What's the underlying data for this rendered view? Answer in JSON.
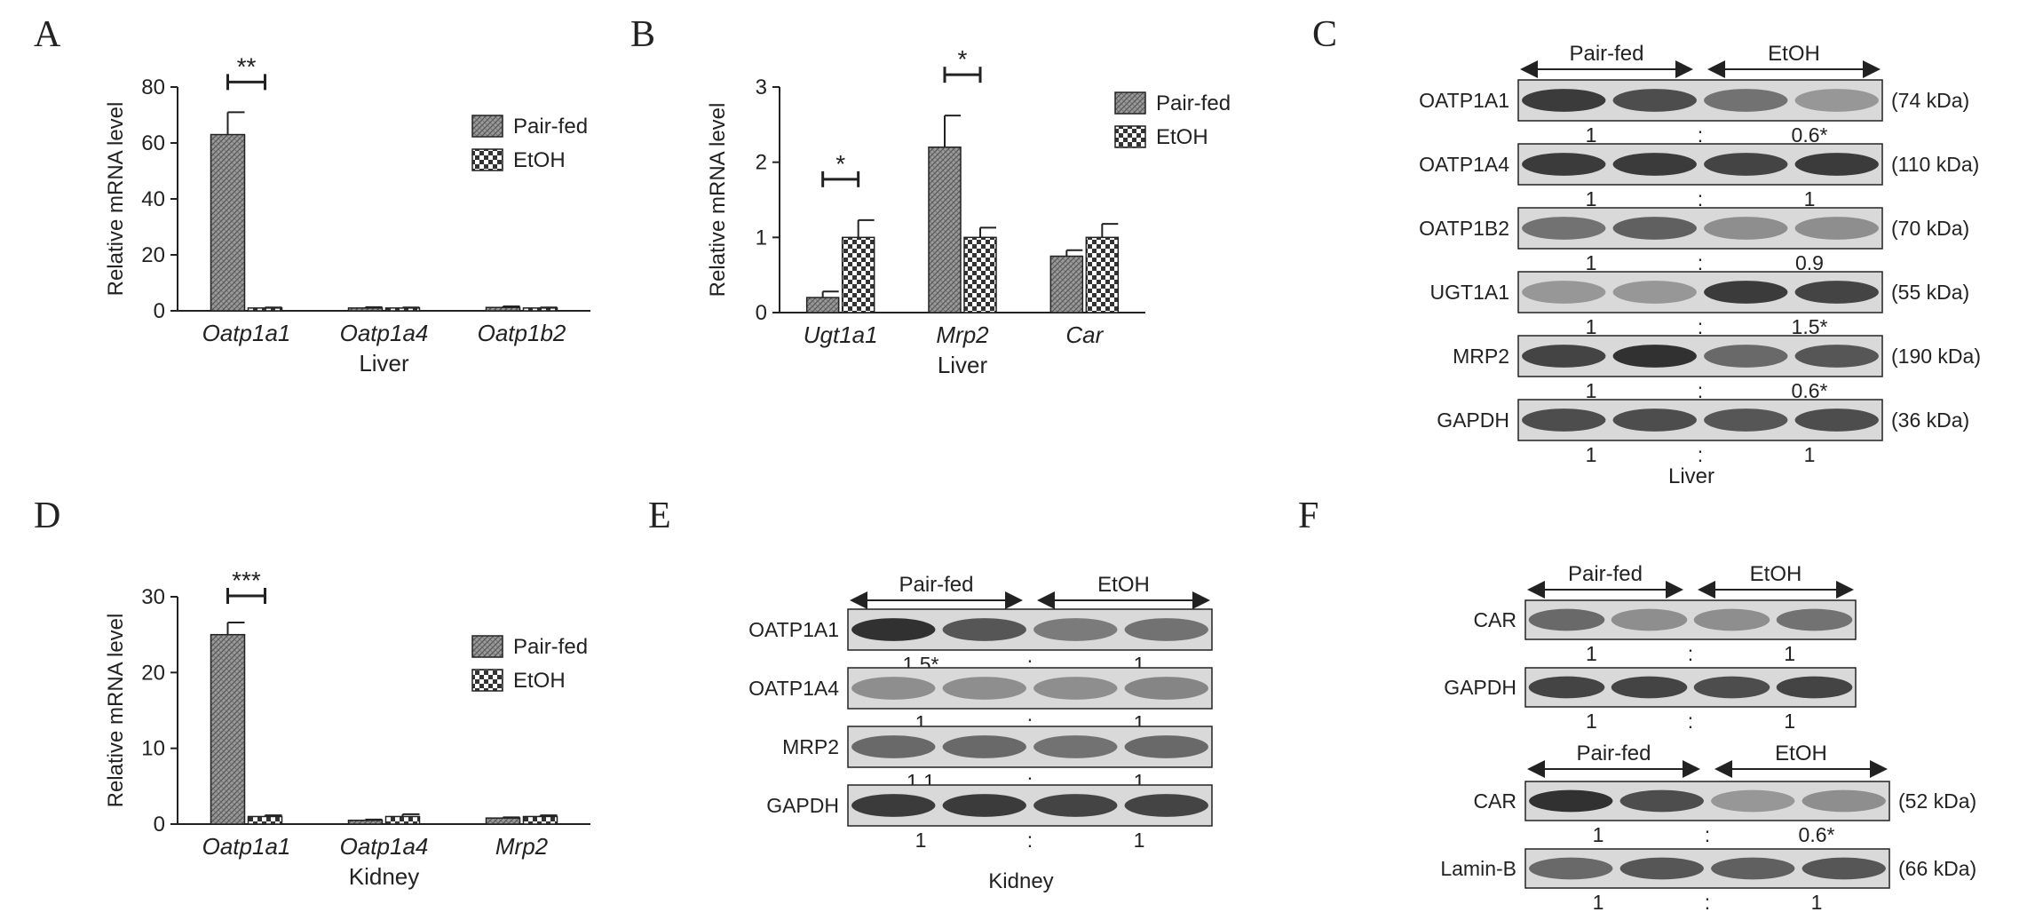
{
  "colors": {
    "pair_fed_fill": "#8a8a8a",
    "etoh_fill": "#ffffff",
    "line": "#222222"
  },
  "chart_data": [
    {
      "panel": "A",
      "type": "bar",
      "categories": [
        "Oatp1a1",
        "Oatp1a4",
        "Oatp1b2"
      ],
      "xlabel": "Liver",
      "ylabel": "Relative mRNA level",
      "ylim": [
        0,
        80
      ],
      "yticks": [
        "0",
        "20",
        "40",
        "60",
        "80"
      ],
      "series": [
        {
          "name": "Pair-fed",
          "values": [
            63,
            1,
            1.2
          ],
          "errors": [
            8,
            0.3,
            0.4
          ]
        },
        {
          "name": "EtOH",
          "values": [
            1,
            1,
            1
          ],
          "errors": [
            0.2,
            0.2,
            0.2
          ]
        }
      ],
      "significance": [
        {
          "category": 0,
          "label": "**"
        }
      ],
      "legend": "right"
    },
    {
      "panel": "B",
      "type": "bar",
      "categories": [
        "Ugt1a1",
        "Mrp2",
        "Car"
      ],
      "xlabel": "Liver",
      "ylabel": "Relative mRNA level",
      "ylim": [
        0,
        3
      ],
      "yticks": [
        "0",
        "1",
        "2",
        "3"
      ],
      "series": [
        {
          "name": "Pair-fed",
          "values": [
            0.2,
            2.2,
            0.75
          ],
          "errors": [
            0.08,
            0.42,
            0.08
          ]
        },
        {
          "name": "EtOH",
          "values": [
            1,
            1,
            1
          ],
          "errors": [
            0.23,
            0.13,
            0.18
          ]
        }
      ],
      "significance": [
        {
          "category": 0,
          "label": "*"
        },
        {
          "category": 1,
          "label": "*"
        }
      ],
      "legend": "top-right"
    },
    {
      "panel": "D",
      "type": "bar",
      "categories": [
        "Oatp1a1",
        "Oatp1a4",
        "Mrp2"
      ],
      "xlabel": "Kidney",
      "ylabel": "Relative mRNA level",
      "ylim": [
        0,
        30
      ],
      "yticks": [
        "0",
        "10",
        "20",
        "30"
      ],
      "series": [
        {
          "name": "Pair-fed",
          "values": [
            25,
            0.5,
            0.8
          ],
          "errors": [
            1.6,
            0.1,
            0.1
          ]
        },
        {
          "name": "EtOH",
          "values": [
            1,
            1,
            1
          ],
          "errors": [
            0.15,
            0.3,
            0.15
          ]
        }
      ],
      "significance": [
        {
          "category": 0,
          "label": "***"
        }
      ],
      "legend": "right"
    }
  ],
  "panel_letters": {
    "A": "A",
    "B": "B",
    "C": "C",
    "D": "D",
    "E": "E",
    "F": "F"
  },
  "blots": {
    "C": {
      "groups": [
        "Pair-fed",
        "EtOH"
      ],
      "tissue": "Liver",
      "rows": [
        {
          "protein": "OATP1A1",
          "kda": "(74 kDa)",
          "q1": "1",
          "sep": ":",
          "q2": "0.6*"
        },
        {
          "protein": "OATP1A4",
          "kda": "(110 kDa)",
          "q1": "1",
          "sep": ":",
          "q2": "1"
        },
        {
          "protein": "OATP1B2",
          "kda": "(70 kDa)",
          "q1": "1",
          "sep": ":",
          "q2": "0.9"
        },
        {
          "protein": "UGT1A1",
          "kda": "(55 kDa)",
          "q1": "1",
          "sep": ":",
          "q2": "1.5*"
        },
        {
          "protein": "MRP2",
          "kda": "(190 kDa)",
          "q1": "1",
          "sep": ":",
          "q2": "0.6*"
        },
        {
          "protein": "GAPDH",
          "kda": "(36 kDa)",
          "q1": "1",
          "sep": ":",
          "q2": "1"
        }
      ]
    },
    "E": {
      "groups": [
        "Pair-fed",
        "EtOH"
      ],
      "tissue": "Kidney",
      "rows": [
        {
          "protein": "OATP1A1",
          "q1": "1.5*",
          "sep": ":",
          "q2": "1"
        },
        {
          "protein": "OATP1A4",
          "q1": "1",
          "sep": ":",
          "q2": "1"
        },
        {
          "protein": "MRP2",
          "q1": "1.1",
          "sep": ":",
          "q2": "1"
        },
        {
          "protein": "GAPDH",
          "q1": "1",
          "sep": ":",
          "q2": "1"
        }
      ]
    },
    "F_top": {
      "groups": [
        "Pair-fed",
        "EtOH"
      ],
      "rows": [
        {
          "protein": "CAR",
          "q1": "1",
          "sep": ":",
          "q2": "1"
        },
        {
          "protein": "GAPDH",
          "q1": "1",
          "sep": ":",
          "q2": "1"
        }
      ]
    },
    "F_bottom": {
      "groups": [
        "Pair-fed",
        "EtOH"
      ],
      "rows": [
        {
          "protein": "CAR",
          "kda": "(52 kDa)",
          "q1": "1",
          "sep": ":",
          "q2": "0.6*"
        },
        {
          "protein": "Lamin-B",
          "kda": "(66 kDa)",
          "q1": "1",
          "sep": ":",
          "q2": "1"
        }
      ]
    }
  }
}
